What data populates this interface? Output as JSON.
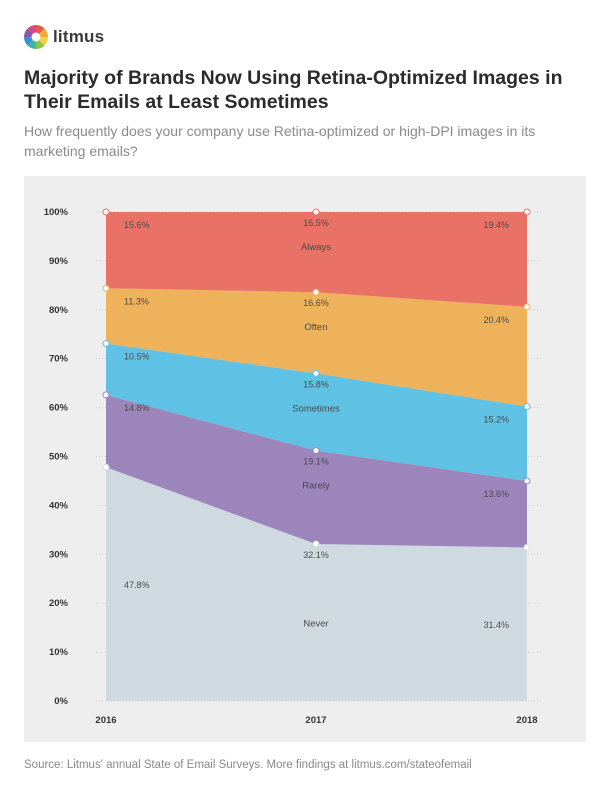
{
  "brand": {
    "name": "litmus",
    "logo_colors": [
      "#e8574a",
      "#f2a93b",
      "#f5d24b",
      "#8dc63f",
      "#3db7a5",
      "#3b8ed0",
      "#7b5ea7",
      "#d9477f"
    ]
  },
  "header": {
    "title": "Majority of Brands Now Using Retina-Optimized Images in Their Emails at Least Sometimes",
    "subtitle": "How frequently does your company use Retina-optimized or high-DPI images in its marketing emails?"
  },
  "footer": {
    "source": "Source: Litmus' annual State of Email Surveys. More findings at litmus.com/stateofemail"
  },
  "chart_data": {
    "type": "area",
    "stacked": true,
    "title": "Majority of Brands Now Using Retina-Optimized Images in Their Emails at Least Sometimes",
    "xlabel": "",
    "ylabel": "",
    "x": [
      "2016",
      "2017",
      "2018"
    ],
    "ylim": [
      0,
      100
    ],
    "yticks": [
      "0%",
      "10%",
      "20%",
      "30%",
      "40%",
      "50%",
      "60%",
      "70%",
      "80%",
      "90%",
      "100%"
    ],
    "grid": true,
    "series": [
      {
        "name": "Never",
        "values": [
          47.8,
          32.1,
          31.4
        ],
        "labels": [
          "47.8%",
          "32.1%",
          "31.4%"
        ],
        "color": "#cfdae0"
      },
      {
        "name": "Rarely",
        "values": [
          14.8,
          19.1,
          13.6
        ],
        "labels": [
          "14.8%",
          "19.1%",
          "13.6%"
        ],
        "color": "#9b85bb"
      },
      {
        "name": "Sometimes",
        "values": [
          10.5,
          15.8,
          15.2
        ],
        "labels": [
          "10.5%",
          "15.8%",
          "15.2%"
        ],
        "color": "#5fc1e3"
      },
      {
        "name": "Often",
        "values": [
          11.3,
          16.6,
          20.4
        ],
        "labels": [
          "11.3%",
          "16.6%",
          "20.4%"
        ],
        "color": "#eeb25a"
      },
      {
        "name": "Always",
        "values": [
          15.6,
          16.5,
          19.4
        ],
        "labels": [
          "15.6%",
          "16.5%",
          "19.4%"
        ],
        "color": "#ea7165"
      }
    ]
  }
}
